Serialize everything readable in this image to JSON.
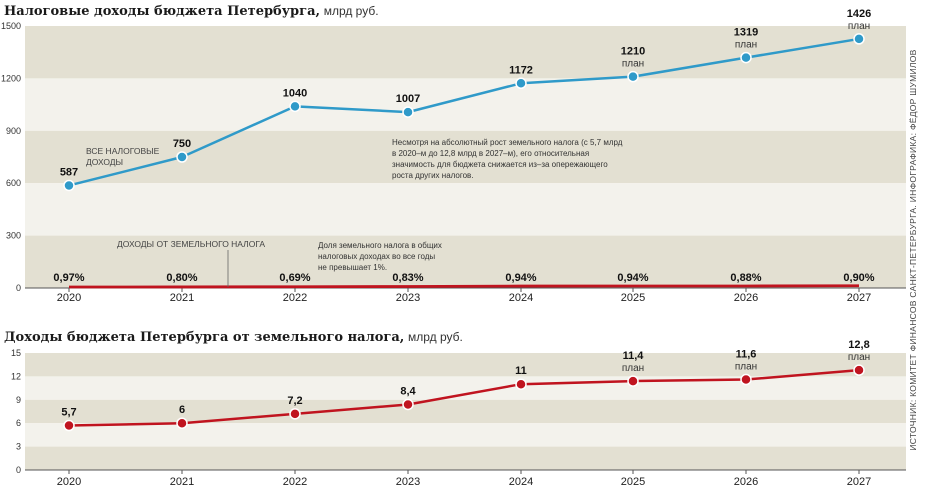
{
  "source": "ИСТОЧНИК: КОМИТЕТ ФИНАНСОВ САНКТ-ПЕТЕРБУРГА. ИНФОГРАФИКА: ФЁДОР ШУМИЛОВ",
  "colors": {
    "blue": "#2f9ac9",
    "red": "#c0141f",
    "band_dark": "#e3e0d2",
    "band_light": "#f3f2ec"
  },
  "chart_data": [
    {
      "type": "line",
      "title": "Налоговые доходы бюджета Петербурга,",
      "unit": "млрд руб.",
      "x": [
        "2020",
        "2021",
        "2022",
        "2023",
        "2024",
        "2025",
        "2026",
        "2027"
      ],
      "ylim": [
        0,
        1500
      ],
      "yticks": [
        "0",
        "300",
        "600",
        "900",
        "1200",
        "1500"
      ],
      "series": [
        {
          "name": "ВСЕ НАЛОГОВЫЕ ДОХОДЫ",
          "values": [
            587,
            750,
            1040,
            1007,
            1172,
            1210,
            1319,
            1426
          ],
          "labels": [
            "587",
            "750",
            "1040",
            "1007",
            "1172",
            "1210",
            "1319",
            "1426"
          ],
          "notes": [
            "",
            "",
            "",
            "",
            "",
            "план",
            "план",
            "план"
          ]
        },
        {
          "name": "ДОХОДЫ ОТ ЗЕМЕЛЬНОГО НАЛОГА",
          "values": [
            5.7,
            6,
            7.2,
            8.4,
            11,
            11.4,
            11.6,
            12.8
          ]
        }
      ],
      "share_labels": [
        "0,97%",
        "0,80%",
        "0,69%",
        "0,83%",
        "0,94%",
        "0,94%",
        "0,88%",
        "0,90%"
      ],
      "annotations": [
        {
          "lines": [
            "Несмотря на абсолютный рост земельного налога (с 5,7 млрд",
            "в 2020–м до 12,8 млрд в 2027–м), его относительная",
            "значимость для бюджета снижается из–за опережающего",
            "роста других налогов."
          ]
        },
        {
          "lines": [
            "Доля земельного налога в общих",
            "налоговых доходах во все годы",
            "не превышает 1%."
          ]
        }
      ]
    },
    {
      "type": "line",
      "title": "Доходы бюджета Петербурга от земельного налога,",
      "unit": "млрд руб.",
      "x": [
        "2020",
        "2021",
        "2022",
        "2023",
        "2024",
        "2025",
        "2026",
        "2027"
      ],
      "ylim": [
        0,
        15
      ],
      "yticks": [
        "0",
        "3",
        "6",
        "9",
        "12",
        "15"
      ],
      "series": [
        {
          "values": [
            5.7,
            6,
            7.2,
            8.4,
            11,
            11.4,
            11.6,
            12.8
          ],
          "labels": [
            "5,7",
            "6",
            "7,2",
            "8,4",
            "11",
            "11,4",
            "11,6",
            "12,8"
          ],
          "notes": [
            "",
            "",
            "",
            "",
            "",
            "план",
            "план",
            "план"
          ]
        }
      ]
    }
  ]
}
